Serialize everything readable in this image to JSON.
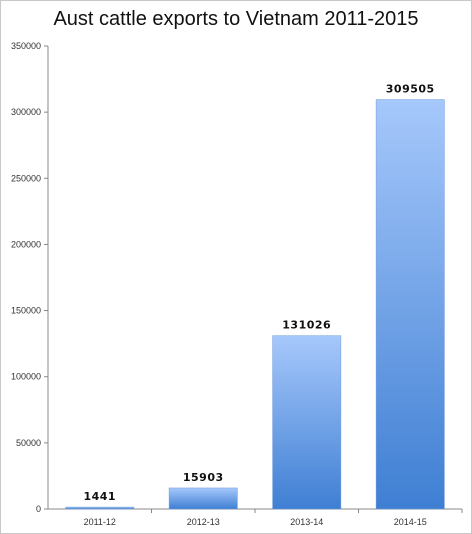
{
  "chart_data": {
    "type": "bar",
    "title": "Aust cattle exports to Vietnam 2011-2015",
    "xlabel": "",
    "ylabel": "",
    "categories": [
      "2011-12",
      "2012-13",
      "2013-14",
      "2014-15"
    ],
    "values": [
      1441,
      15903,
      131026,
      309505
    ],
    "data_labels": [
      "1441",
      "15903",
      "131026",
      "309505"
    ],
    "ylim": [
      0,
      350000
    ],
    "yticks": [
      0,
      50000,
      100000,
      150000,
      200000,
      250000,
      300000,
      350000
    ],
    "ytick_labels": [
      "0",
      "50000",
      "100000",
      "150000",
      "200000",
      "250000",
      "300000",
      "350000"
    ],
    "grid": false,
    "legend": "none",
    "bar_color_top": "#a6c8fb",
    "bar_color_bottom": "#3f7fd3"
  }
}
